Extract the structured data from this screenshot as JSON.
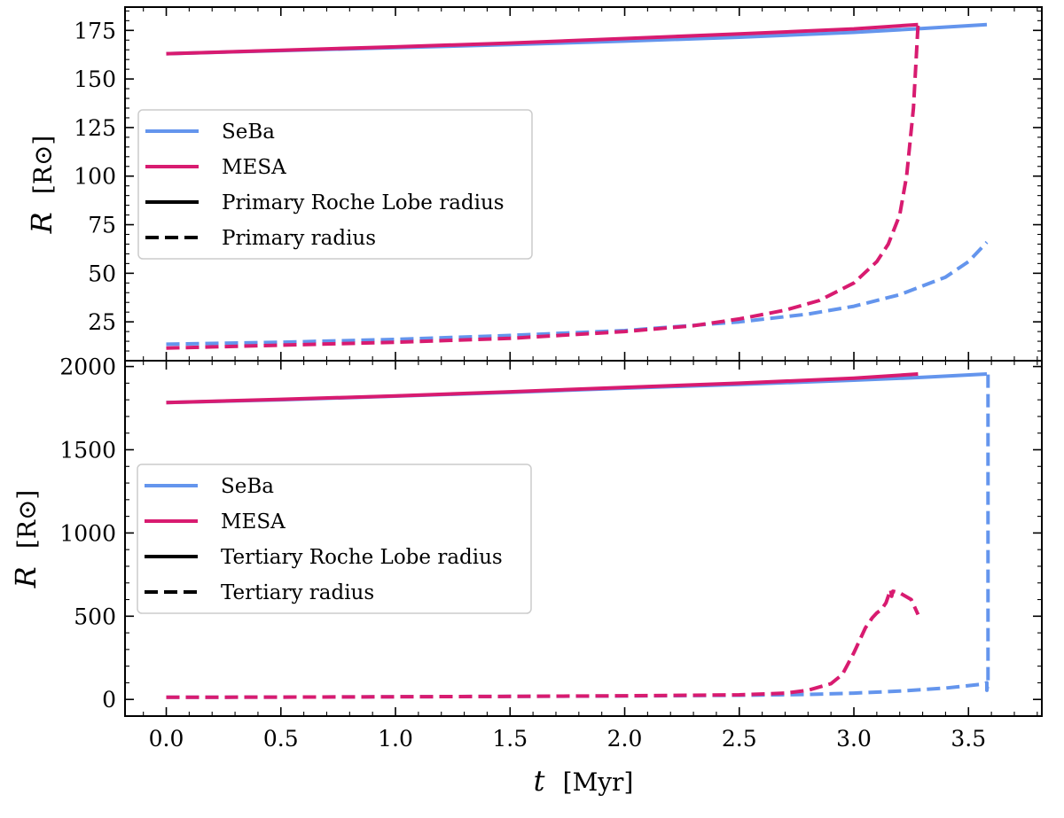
{
  "chart_data": [
    {
      "type": "line",
      "panel": "top",
      "xlabel_math": "t",
      "xlabel_unit": "[Myr]",
      "ylabel_math": "R",
      "ylabel_unit": "[R⊙]",
      "xlim": [
        -0.18,
        3.82
      ],
      "ylim": [
        5,
        187
      ],
      "xticks": [
        "0.0",
        "0.5",
        "1.0",
        "1.5",
        "2.0",
        "2.5",
        "3.0",
        "3.5"
      ],
      "xtick_values": [
        0,
        0.5,
        1,
        1.5,
        2,
        2.5,
        3,
        3.5
      ],
      "yticks": [
        "25",
        "50",
        "75",
        "100",
        "125",
        "150",
        "175"
      ],
      "ytick_values": [
        25,
        50,
        75,
        100,
        125,
        150,
        175
      ],
      "legend": {
        "placement": "center-left",
        "entries": [
          {
            "label": "SeBa",
            "color": "#6495ED",
            "style": "solid"
          },
          {
            "label": "MESA",
            "color": "#D81B70",
            "style": "solid"
          },
          {
            "label": "Primary Roche Lobe radius",
            "color": "#000000",
            "style": "solid"
          },
          {
            "label": "Primary radius",
            "color": "#000000",
            "style": "dashed"
          }
        ]
      },
      "series": [
        {
          "name": "SeBa Roche Lobe radius",
          "color": "#6495ED",
          "style": "solid",
          "x": [
            0,
            0.5,
            1.0,
            1.5,
            2.0,
            2.5,
            3.0,
            3.3,
            3.58
          ],
          "y": [
            163,
            164.6,
            166.1,
            167.7,
            169.5,
            171.5,
            174.0,
            176.0,
            178.0
          ]
        },
        {
          "name": "SeBa radius",
          "color": "#6495ED",
          "style": "dashed",
          "x": [
            0,
            0.5,
            1.0,
            1.5,
            2.0,
            2.5,
            2.8,
            3.0,
            3.2,
            3.4,
            3.5,
            3.58
          ],
          "y": [
            13.5,
            14.5,
            16,
            18,
            20.5,
            25,
            29,
            33,
            39,
            48,
            56,
            66
          ]
        },
        {
          "name": "MESA Roche Lobe radius",
          "color": "#D81B70",
          "style": "solid",
          "x": [
            0,
            0.5,
            1.0,
            1.5,
            2.0,
            2.5,
            3.0,
            3.28
          ],
          "y": [
            163,
            164.8,
            166.5,
            168.5,
            170.8,
            173.2,
            175.8,
            178.0
          ]
        },
        {
          "name": "MESA radius",
          "color": "#D81B70",
          "style": "dashed",
          "x": [
            0,
            0.5,
            1.0,
            1.5,
            2.0,
            2.3,
            2.5,
            2.7,
            2.85,
            3.0,
            3.1,
            3.15,
            3.2,
            3.23,
            3.26,
            3.28
          ],
          "y": [
            11.5,
            13,
            14.5,
            16.5,
            20,
            23,
            26.5,
            31,
            36,
            45,
            56,
            65,
            80,
            100,
            135,
            178
          ]
        }
      ]
    },
    {
      "type": "line",
      "panel": "bottom",
      "xlabel_math": "t",
      "xlabel_unit": "[Myr]",
      "ylabel_math": "R",
      "ylabel_unit": "[R⊙]",
      "xlim": [
        -0.18,
        3.82
      ],
      "ylim": [
        -100,
        2035
      ],
      "xticks": [
        "0.0",
        "0.5",
        "1.0",
        "1.5",
        "2.0",
        "2.5",
        "3.0",
        "3.5"
      ],
      "xtick_values": [
        0,
        0.5,
        1,
        1.5,
        2,
        2.5,
        3,
        3.5
      ],
      "yticks": [
        "0",
        "500",
        "1000",
        "1500",
        "2000"
      ],
      "ytick_values": [
        0,
        500,
        1000,
        1500,
        2000
      ],
      "legend": {
        "placement": "center-left",
        "entries": [
          {
            "label": "SeBa",
            "color": "#6495ED",
            "style": "solid"
          },
          {
            "label": "MESA",
            "color": "#D81B70",
            "style": "solid"
          },
          {
            "label": "Tertiary Roche Lobe radius",
            "color": "#000000",
            "style": "solid"
          },
          {
            "label": "Tertiary radius",
            "color": "#000000",
            "style": "dashed"
          }
        ]
      },
      "series": [
        {
          "name": "SeBa Roche Lobe radius",
          "color": "#6495ED",
          "style": "solid",
          "x": [
            0,
            0.5,
            1.0,
            1.5,
            2.0,
            2.5,
            3.0,
            3.3,
            3.58
          ],
          "y": [
            1783,
            1800,
            1822,
            1845,
            1870,
            1893,
            1918,
            1935,
            1955
          ]
        },
        {
          "name": "SeBa radius",
          "color": "#6495ED",
          "style": "dashed",
          "x": [
            0,
            0.5,
            1.0,
            1.5,
            2.0,
            2.5,
            2.8,
            3.0,
            3.2,
            3.4,
            3.55,
            3.58,
            3.58,
            3.585,
            3.585
          ],
          "y": [
            13,
            14,
            16,
            18,
            21,
            25,
            30,
            38,
            50,
            68,
            90,
            100,
            55,
            100,
            1955
          ]
        },
        {
          "name": "MESA Roche Lobe radius",
          "color": "#D81B70",
          "style": "solid",
          "x": [
            0,
            0.5,
            1.0,
            1.5,
            2.0,
            2.5,
            3.0,
            3.28
          ],
          "y": [
            1783,
            1803,
            1823,
            1848,
            1875,
            1900,
            1930,
            1955
          ]
        },
        {
          "name": "MESA radius",
          "color": "#D81B70",
          "style": "dashed",
          "x": [
            0,
            0.5,
            1.0,
            1.5,
            2.0,
            2.5,
            2.7,
            2.8,
            2.9,
            2.95,
            3.0,
            3.05,
            3.08,
            3.1,
            3.12,
            3.14,
            3.16,
            3.165,
            3.17,
            3.2,
            3.25,
            3.28
          ],
          "y": [
            13,
            14,
            16,
            18,
            22,
            28,
            38,
            55,
            95,
            150,
            280,
            430,
            490,
            520,
            540,
            580,
            660,
            620,
            650,
            640,
            600,
            510
          ]
        }
      ]
    }
  ]
}
